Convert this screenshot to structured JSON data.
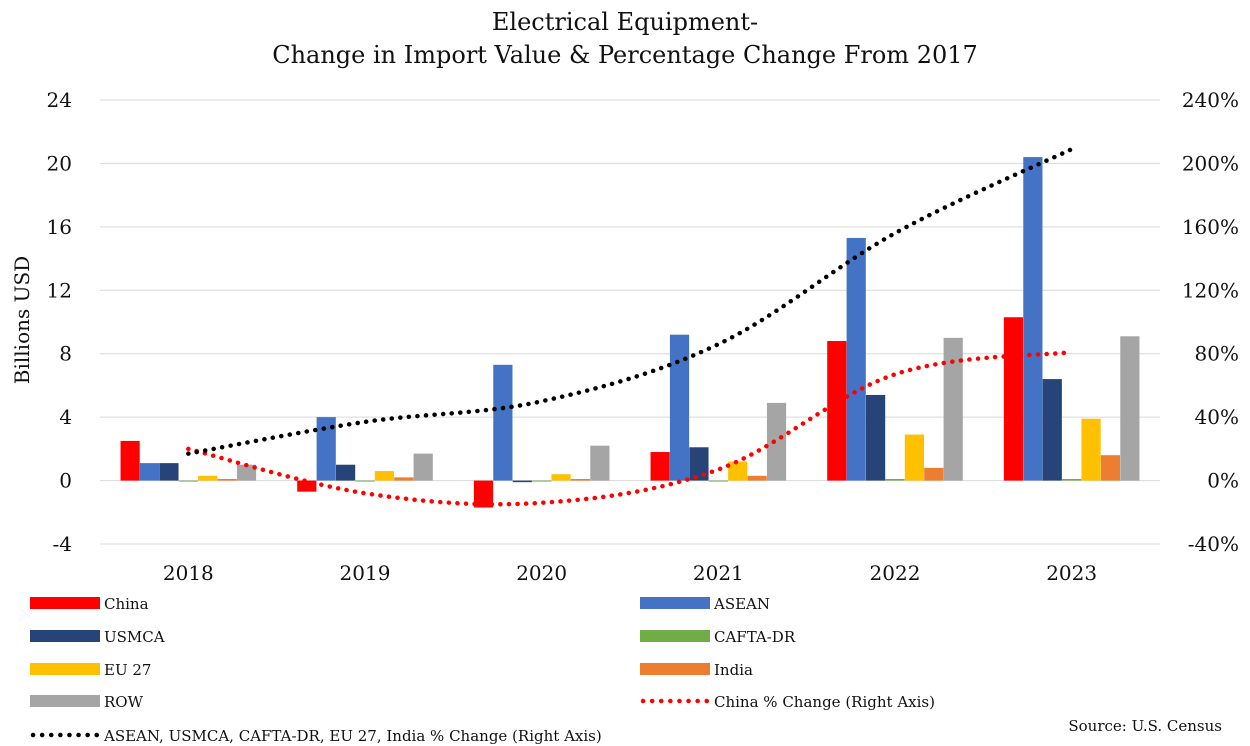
{
  "chart_data": {
    "type": "bar",
    "title_line1": "Electrical Equipment-",
    "title_line2": "Change in Import Value & Percentage Change From 2017",
    "ylabel": "Billions USD",
    "categories": [
      "2018",
      "2019",
      "2020",
      "2021",
      "2022",
      "2023"
    ],
    "ylim": [
      -4,
      24
    ],
    "yticks": [
      "-4",
      "0",
      "4",
      "8",
      "12",
      "16",
      "20",
      "24"
    ],
    "y2lim": [
      -0.4,
      2.4
    ],
    "y2ticks": [
      "-40%",
      "0%",
      "40%",
      "80%",
      "120%",
      "160%",
      "200%",
      "240%"
    ],
    "grid": true,
    "series": [
      {
        "name": "China",
        "type": "bar",
        "color": "#FF0000",
        "values": [
          2.5,
          -0.7,
          -1.7,
          1.8,
          8.8,
          10.3
        ]
      },
      {
        "name": "ASEAN",
        "type": "bar",
        "color": "#4472C4",
        "values": [
          1.1,
          4.0,
          7.3,
          9.2,
          15.3,
          20.4
        ]
      },
      {
        "name": "USMCA",
        "type": "bar",
        "color": "#264478",
        "values": [
          1.1,
          1.0,
          -0.1,
          2.1,
          5.4,
          6.4
        ]
      },
      {
        "name": "CAFTA-DR",
        "type": "bar",
        "color": "#70AD47",
        "values": [
          0.0,
          0.0,
          0.0,
          0.0,
          0.1,
          0.1
        ]
      },
      {
        "name": "EU 27",
        "type": "bar",
        "color": "#FFC000",
        "values": [
          0.3,
          0.6,
          0.4,
          1.2,
          2.9,
          3.9
        ]
      },
      {
        "name": "India",
        "type": "bar",
        "color": "#ED7D31",
        "values": [
          0.1,
          0.2,
          0.1,
          0.3,
          0.8,
          1.6
        ]
      },
      {
        "name": "ROW",
        "type": "bar",
        "color": "#A5A5A5",
        "values": [
          1.0,
          1.7,
          2.2,
          4.9,
          9.0,
          9.1
        ]
      },
      {
        "name": "China % Change (Right Axis)",
        "type": "line",
        "axis": "right",
        "color": "#FF0000",
        "values": [
          0.2,
          -0.08,
          -0.14,
          0.07,
          0.67,
          0.81
        ]
      },
      {
        "name": "ASEAN, USMCA, CAFTA-DR, EU 27, India % Change (Right Axis)",
        "type": "line",
        "axis": "right",
        "color": "#000000",
        "values": [
          0.17,
          0.37,
          0.5,
          0.86,
          1.56,
          2.09
        ]
      }
    ],
    "legend_position": "bottom",
    "source": "Source: U.S. Census"
  }
}
